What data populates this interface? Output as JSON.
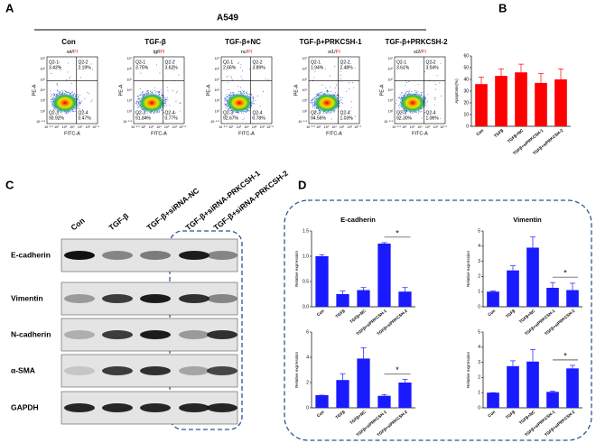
{
  "panel_labels": [
    "A",
    "B",
    "C",
    "D"
  ],
  "flow": {
    "title": "A549",
    "x_label": "FITC-A",
    "y_label": "PE-A",
    "x_ticks": [
      "10⁻²·⁸",
      "10²",
      "10³",
      "10⁴",
      "10⁵",
      "10⁶",
      "10⁷·²"
    ],
    "y_ticks": [
      "10⁷",
      "10⁶",
      "10⁵",
      "10⁴",
      "10³",
      "10²",
      "10⁻¹·⁸"
    ],
    "plots": [
      {
        "condition": "Con",
        "sample": "wt/",
        "stain": "PI",
        "quadrants": [
          {
            "name": "Q2-1",
            "percent": "3.42%"
          },
          {
            "name": "Q2-2",
            "percent": "2.19%"
          },
          {
            "name": "Q2-3",
            "percent": "93.92%"
          },
          {
            "name": "Q2-4",
            "percent": "0.47%"
          }
        ]
      },
      {
        "condition": "TGF-β",
        "sample": "tgf/",
        "stain": "PI",
        "quadrants": [
          {
            "name": "Q2-1",
            "percent": "3.76%"
          },
          {
            "name": "Q2-2",
            "percent": "3.62%"
          },
          {
            "name": "Q2-3",
            "percent": "91.84%"
          },
          {
            "name": "Q2-4",
            "percent": "0.77%"
          }
        ]
      },
      {
        "condition": "TGF-β+NC",
        "sample": "nc/",
        "stain": "PI",
        "quadrants": [
          {
            "name": "Q2-1",
            "percent": "2.66%"
          },
          {
            "name": "Q2-2",
            "percent": "3.89%"
          },
          {
            "name": "Q2-3",
            "percent": "92.67%"
          },
          {
            "name": "Q2-4",
            "percent": "0.78%"
          }
        ]
      },
      {
        "condition": "TGF-β+PRKCSH-1",
        "sample": "si1/",
        "stain": "PI",
        "quadrants": [
          {
            "name": "Q2-1",
            "percent": "1.94%"
          },
          {
            "name": "Q2-2",
            "percent": "2.48%"
          },
          {
            "name": "Q2-3",
            "percent": "94.56%"
          },
          {
            "name": "Q2-4",
            "percent": "1.03%"
          }
        ]
      },
      {
        "condition": "TGF-β+PRKCSH-2",
        "sample": "si2/",
        "stain": "PI",
        "quadrants": [
          {
            "name": "Q2-1",
            "percent": "3.61%"
          },
          {
            "name": "Q2-2",
            "percent": "3.04%"
          },
          {
            "name": "Q2-3",
            "percent": "92.30%"
          },
          {
            "name": "Q2-4",
            "percent": "1.06%"
          }
        ]
      }
    ]
  },
  "blot": {
    "columns": [
      "Con",
      "TGF-β",
      "TGF-β+siRNA-NC",
      "TGF-β+siRNA-PRKCSH-1",
      "TGF-β+siRNA-PRKCSH-2"
    ],
    "rows": [
      "E-cadherin",
      "Vimentin",
      "N-cadherin",
      "α-SMA",
      "GAPDH"
    ]
  },
  "chart_data": [
    {
      "type": "bar",
      "y_label": "Apoptosis(%)",
      "color": "#ff0000",
      "categories": [
        "Con",
        "TGFβ",
        "TGFβ+NC",
        "TGFβ+siPRKCSH-1",
        "TGFβ+siPRKCSH-2"
      ],
      "values": [
        36,
        43,
        46,
        37,
        40
      ],
      "errors": [
        6,
        6,
        7,
        8,
        9
      ],
      "ylim": [
        0,
        60
      ],
      "yticks": [
        0,
        10,
        20,
        30,
        40,
        50,
        60
      ]
    },
    {
      "type": "bar",
      "title": "E-cadherin",
      "y_label": "Relative expression",
      "color": "#1a1aff",
      "categories": [
        "Con",
        "TGFβ",
        "TGFβ+NC",
        "TGFβ+siPRKCSH-1",
        "TGFβ+siPRKCSH-2"
      ],
      "values": [
        1.0,
        0.25,
        0.33,
        1.25,
        0.3
      ],
      "errors": [
        0.03,
        0.06,
        0.05,
        0.02,
        0.08
      ],
      "ylim": [
        0,
        1.5
      ],
      "yticks": [
        {
          "value": 0,
          "label": "0.0"
        },
        {
          "value": 0.5,
          "label": "0.5"
        },
        {
          "value": 1,
          "label": "1.0"
        },
        {
          "value": 1.5,
          "label": "1.5"
        }
      ],
      "annotations": [
        "*"
      ]
    },
    {
      "type": "bar",
      "title": "Vimentin",
      "y_label": "Relative expression",
      "color": "#1a1aff",
      "categories": [
        "Con",
        "TGFβ",
        "TGFβ+NC",
        "TGFβ+siPRKCSH-1",
        "TGFβ+siPRKCSH-2"
      ],
      "values": [
        1.0,
        2.4,
        3.9,
        1.25,
        1.1
      ],
      "errors": [
        0.05,
        0.3,
        0.7,
        0.35,
        0.45
      ],
      "ylim": [
        0,
        5
      ],
      "yticks": [
        0,
        1,
        2,
        3,
        4,
        5
      ],
      "annotations": [
        "*"
      ]
    },
    {
      "type": "bar",
      "y_label": "Relative expression",
      "color": "#1a1aff",
      "categories": [
        "Con",
        "TGFβ",
        "TGFβ+NC",
        "TGFβ+siPRKCSH-1",
        "TGFβ+siPRKCSH-2"
      ],
      "values": [
        1.0,
        2.2,
        3.9,
        0.95,
        2.0
      ],
      "errors": [
        0,
        0.5,
        0.85,
        0.1,
        0.25
      ],
      "ylim": [
        0,
        6
      ],
      "yticks": [
        0,
        2,
        4,
        6
      ],
      "annotations": [
        "*"
      ]
    },
    {
      "type": "bar",
      "y_label": "Relative expression",
      "color": "#1a1aff",
      "categories": [
        "Con",
        "TGFβ",
        "TGFβ+NC",
        "TGFβ+siPRKCSH-1",
        "TGFβ+siPRKCSH-2"
      ],
      "values": [
        1.0,
        2.75,
        3.05,
        1.05,
        2.6
      ],
      "errors": [
        0,
        0.35,
        0.8,
        0.05,
        0.2
      ],
      "ylim": [
        0,
        5
      ],
      "yticks": [
        0,
        1,
        2,
        3,
        4,
        5
      ],
      "annotations": [
        "*"
      ]
    }
  ]
}
